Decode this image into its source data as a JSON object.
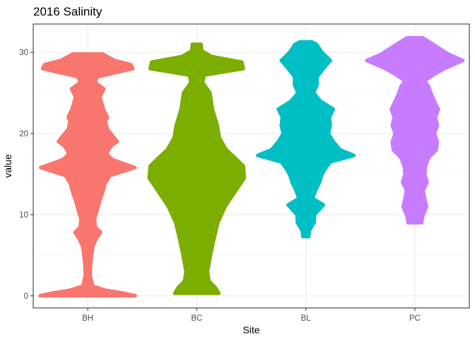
{
  "chart_data": {
    "type": "violin",
    "title": "2016 Salinity",
    "xlabel": "Site",
    "ylabel": "value",
    "ylim": [
      -1.5,
      33.5
    ],
    "yticks": [
      0,
      10,
      20,
      30
    ],
    "grid": true,
    "legend": "none",
    "categories": [
      "BH",
      "BC",
      "BL",
      "PC"
    ],
    "series": [
      {
        "category": "BH",
        "color": "#F8766D",
        "profile": [
          [
            0.0,
            0.97
          ],
          [
            0.3,
            0.75
          ],
          [
            0.7,
            0.35
          ],
          [
            1.2,
            0.1
          ],
          [
            2.5,
            0.05
          ],
          [
            4.0,
            0.06
          ],
          [
            6.0,
            0.1
          ],
          [
            7.0,
            0.17
          ],
          [
            7.8,
            0.26
          ],
          [
            8.5,
            0.15
          ],
          [
            9.5,
            0.14
          ],
          [
            10.7,
            0.2
          ],
          [
            11.8,
            0.25
          ],
          [
            12.8,
            0.31
          ],
          [
            13.8,
            0.35
          ],
          [
            14.8,
            0.45
          ],
          [
            15.8,
            0.96
          ],
          [
            16.8,
            0.5
          ],
          [
            17.5,
            0.38
          ],
          [
            18.5,
            0.48
          ],
          [
            19.0,
            0.6
          ],
          [
            19.8,
            0.5
          ],
          [
            20.5,
            0.4
          ],
          [
            21.5,
            0.36
          ],
          [
            22.0,
            0.4
          ],
          [
            23.0,
            0.32
          ],
          [
            24.5,
            0.25
          ],
          [
            25.5,
            0.33
          ],
          [
            26.3,
            0.15
          ],
          [
            27.0,
            0.2
          ],
          [
            28.0,
            0.92
          ],
          [
            28.5,
            0.88
          ],
          [
            29.0,
            0.55
          ],
          [
            29.8,
            0.3
          ]
        ]
      },
      {
        "category": "BC",
        "color": "#7CAE00",
        "profile": [
          [
            0.3,
            0.45
          ],
          [
            1.0,
            0.38
          ],
          [
            1.8,
            0.25
          ],
          [
            3.0,
            0.22
          ],
          [
            5.0,
            0.28
          ],
          [
            7.0,
            0.35
          ],
          [
            9.0,
            0.43
          ],
          [
            11.0,
            0.58
          ],
          [
            13.0,
            0.8
          ],
          [
            14.5,
            0.97
          ],
          [
            16.0,
            0.95
          ],
          [
            17.0,
            0.78
          ],
          [
            18.0,
            0.6
          ],
          [
            19.5,
            0.46
          ],
          [
            21.0,
            0.42
          ],
          [
            23.0,
            0.32
          ],
          [
            25.0,
            0.27
          ],
          [
            26.3,
            0.12
          ],
          [
            27.2,
            0.15
          ],
          [
            28.0,
            0.95
          ],
          [
            28.8,
            0.92
          ],
          [
            29.5,
            0.3
          ],
          [
            30.2,
            0.1
          ],
          [
            31.0,
            0.09
          ]
        ]
      },
      {
        "category": "BL",
        "color": "#00BFC4",
        "profile": [
          [
            7.3,
            0.06
          ],
          [
            8.0,
            0.07
          ],
          [
            9.0,
            0.17
          ],
          [
            10.0,
            0.18
          ],
          [
            11.2,
            0.36
          ],
          [
            12.0,
            0.14
          ],
          [
            13.0,
            0.2
          ],
          [
            14.0,
            0.28
          ],
          [
            14.8,
            0.32
          ],
          [
            15.5,
            0.38
          ],
          [
            16.5,
            0.5
          ],
          [
            17.3,
            0.98
          ],
          [
            18.0,
            0.7
          ],
          [
            19.0,
            0.56
          ],
          [
            20.0,
            0.46
          ],
          [
            21.0,
            0.5
          ],
          [
            22.0,
            0.48
          ],
          [
            23.0,
            0.56
          ],
          [
            24.0,
            0.3
          ],
          [
            25.0,
            0.16
          ],
          [
            26.0,
            0.23
          ],
          [
            27.0,
            0.23
          ],
          [
            28.0,
            0.36
          ],
          [
            29.0,
            0.5
          ],
          [
            30.0,
            0.33
          ],
          [
            31.0,
            0.22
          ],
          [
            31.3,
            0.12
          ]
        ]
      },
      {
        "category": "PC",
        "color": "#C77CFF",
        "profile": [
          [
            9.0,
            0.14
          ],
          [
            9.8,
            0.16
          ],
          [
            11.0,
            0.24
          ],
          [
            12.0,
            0.2
          ],
          [
            13.0,
            0.17
          ],
          [
            14.0,
            0.25
          ],
          [
            15.0,
            0.2
          ],
          [
            16.0,
            0.22
          ],
          [
            17.0,
            0.28
          ],
          [
            18.0,
            0.44
          ],
          [
            19.0,
            0.46
          ],
          [
            20.0,
            0.4
          ],
          [
            21.0,
            0.46
          ],
          [
            22.0,
            0.42
          ],
          [
            23.0,
            0.48
          ],
          [
            24.0,
            0.4
          ],
          [
            24.8,
            0.34
          ],
          [
            25.8,
            0.28
          ],
          [
            26.5,
            0.2
          ],
          [
            27.3,
            0.4
          ],
          [
            28.0,
            0.6
          ],
          [
            29.0,
            0.98
          ],
          [
            29.8,
            0.68
          ],
          [
            30.5,
            0.5
          ],
          [
            31.2,
            0.32
          ],
          [
            31.8,
            0.16
          ]
        ]
      }
    ]
  }
}
